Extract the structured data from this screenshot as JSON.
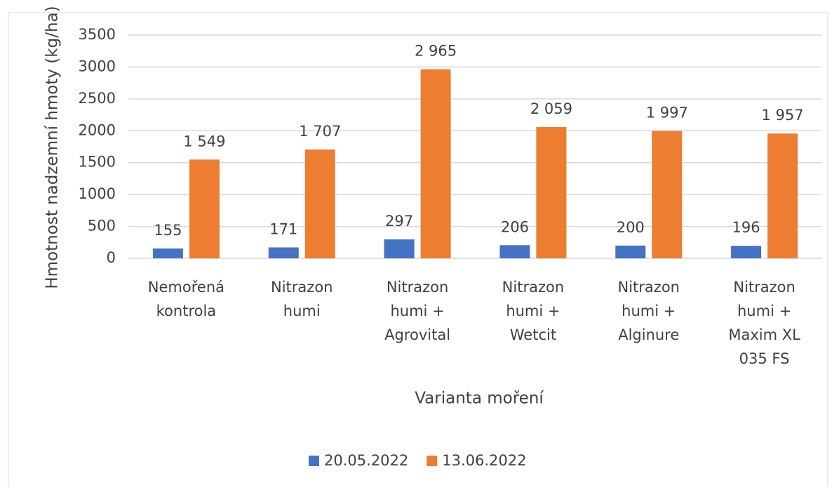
{
  "chart_data": {
    "type": "bar",
    "categories": [
      "Nemořená\nkontrola",
      "Nitrazon\nhumi",
      "Nitrazon\nhumi +\nAgrovital",
      "Nitrazon\nhumi +\nWetcit",
      "Nitrazon\nhumi +\nAlginure",
      "Nitrazon\nhumi +\nMaxim XL\n035 FS"
    ],
    "series": [
      {
        "name": "20.05.2022",
        "color": "#4472c4",
        "values": [
          155,
          171,
          297,
          206,
          200,
          196
        ],
        "value_labels": [
          "155",
          "171",
          "297",
          "206",
          "200",
          "196"
        ]
      },
      {
        "name": "13.06.2022",
        "color": "#ed7d31",
        "values": [
          1549,
          1707,
          2965,
          2059,
          1997,
          1957
        ],
        "value_labels": [
          "1 549",
          "1 707",
          "2 965",
          "2 059",
          "1 997",
          "1 957"
        ]
      }
    ],
    "x_label": "Varianta moření",
    "y_label": "Hmotnost nadzemní hmoty (kg/ha)",
    "ylim": [
      0,
      3500
    ],
    "yticks": [
      0,
      500,
      1000,
      1500,
      2000,
      2500,
      3000,
      3500
    ],
    "grid": true,
    "legend": "bottom"
  }
}
